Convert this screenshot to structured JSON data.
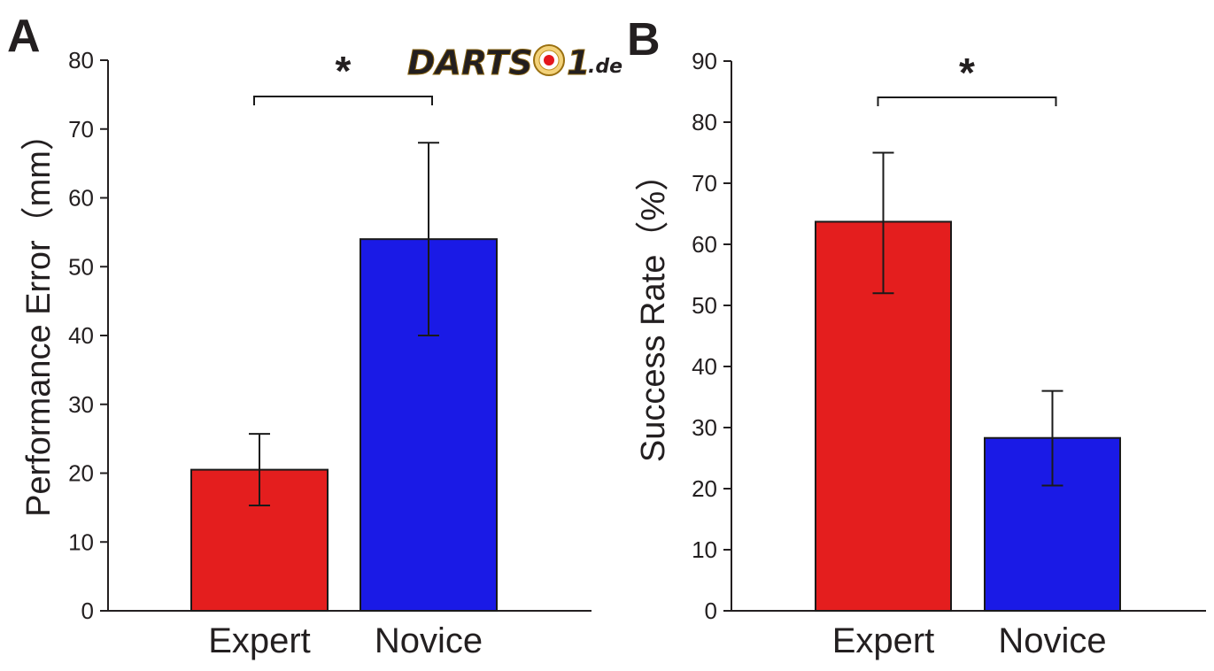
{
  "colors": {
    "expert": "#e41e1e",
    "novice": "#1a1ae6",
    "axis": "#231f20",
    "logo_gold": "#d9a41c",
    "logo_dot": "#e4161c"
  },
  "logo": {
    "text_main": "DARTS",
    "text_num": "1",
    "text_tld": ".de",
    "icon": "dartboard-bullseye-icon"
  },
  "chart_data": [
    {
      "panel": "A",
      "type": "bar",
      "ylabel": "Performance Error（mm）",
      "xlabel": "",
      "ylim": [
        0,
        80
      ],
      "yticks": [
        0,
        10,
        20,
        30,
        40,
        50,
        60,
        70,
        80
      ],
      "categories": [
        "Expert",
        "Novice"
      ],
      "values": [
        20.5,
        54
      ],
      "error_low": [
        15.3,
        40
      ],
      "error_high": [
        25.7,
        68
      ],
      "significance": {
        "label": "*",
        "between": [
          0,
          1
        ]
      },
      "grid": false,
      "legend": "none"
    },
    {
      "panel": "B",
      "type": "bar",
      "ylabel": "Success Rate（%）",
      "xlabel": "",
      "ylim": [
        0,
        90
      ],
      "yticks": [
        0,
        10,
        20,
        30,
        40,
        50,
        60,
        70,
        80,
        90
      ],
      "categories": [
        "Expert",
        "Novice"
      ],
      "values": [
        63.7,
        28.3
      ],
      "error_low": [
        52,
        20.5
      ],
      "error_high": [
        75,
        36
      ],
      "significance": {
        "label": "*",
        "between": [
          0,
          1
        ]
      },
      "grid": false,
      "legend": "none"
    }
  ]
}
